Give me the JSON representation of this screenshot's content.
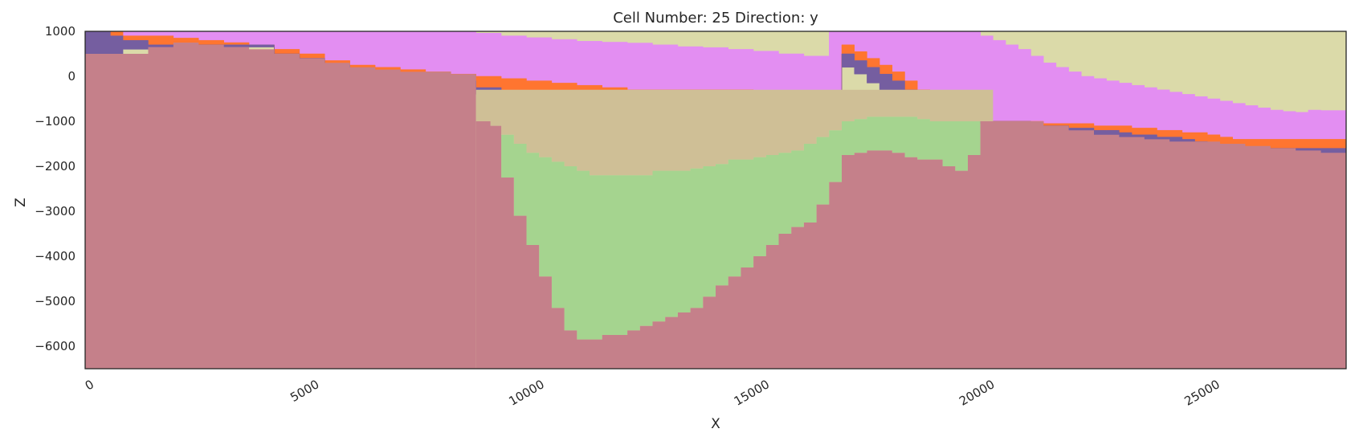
{
  "chart_data": {
    "type": "heatmap",
    "title": "Cell Number: 25 Direction: y",
    "xlabel": "X",
    "ylabel": "Z",
    "xlim": [
      0,
      28000
    ],
    "ylim": [
      -6500,
      1000
    ],
    "x_ticks": [
      0,
      5000,
      10000,
      15000,
      20000,
      25000
    ],
    "y_ticks": [
      1000,
      0,
      -1000,
      -2000,
      -3000,
      -4000,
      -5000,
      -6000
    ],
    "x_tick_labels": [
      "0",
      "5000",
      "10000",
      "15000",
      "20000",
      "25000"
    ],
    "y_tick_labels": [
      "1000",
      "0",
      "−1000",
      "−2000",
      "−3000",
      "−4000",
      "−5000",
      "−6000"
    ],
    "grid": false,
    "legend": "none",
    "colors": {
      "top_unit": "#dbdaa9",
      "pink_unit": "#e38ef2",
      "orange_unit": "#ff7530",
      "purple_unit": "#755ea0",
      "tan_unit": "#cfbf96",
      "green_unit": "#a5d48f",
      "basement": "#c5808a"
    },
    "layers": [
      {
        "unit": "top_unit",
        "x": [
          0,
          8700,
          17000,
          18800,
          19700,
          28000
        ],
        "bottom": [
          1000,
          1000,
          1000,
          1000,
          1000,
          1000
        ],
        "top": [
          1000,
          1000,
          1000,
          1000,
          1000,
          1000
        ]
      }
    ],
    "surfaces": {
      "x": [
        0,
        560,
        840,
        1400,
        1960,
        2520,
        3080,
        3640,
        4200,
        4760,
        5320,
        5880,
        6440,
        7000,
        7560,
        8120,
        8680,
        9240,
        9800,
        10360,
        10920,
        11480,
        12040,
        12600,
        13160,
        13720,
        14280,
        14840,
        15400,
        15960,
        16520,
        16800,
        17080,
        17360,
        17640,
        17920,
        18200,
        18480,
        18760,
        19040,
        19320,
        19600,
        19880,
        20160,
        20440,
        20720,
        21000,
        21280,
        21560,
        21840,
        22120,
        22400,
        22680,
        22960,
        23240,
        23520,
        23800,
        24080,
        24360,
        24640,
        24920,
        25200,
        25480,
        25760,
        26040,
        26320,
        26600,
        26880,
        27160,
        27440,
        27720,
        28000
      ],
      "top_unit_base": [
        1000,
        1000,
        1000,
        1000,
        1000,
        1000,
        1000,
        1000,
        1000,
        1000,
        1000,
        1000,
        1000,
        1000,
        1000,
        1000,
        960,
        900,
        860,
        820,
        780,
        760,
        740,
        700,
        660,
        640,
        600,
        560,
        500,
        450,
        1000,
        1000,
        1000,
        1000,
        1000,
        1000,
        1000,
        1000,
        1000,
        1000,
        1000,
        1000,
        900,
        800,
        700,
        600,
        450,
        300,
        200,
        100,
        0,
        -50,
        -100,
        -150,
        -200,
        -250,
        -300,
        -350,
        -400,
        -450,
        -500,
        -550,
        -600,
        -650,
        -700,
        -750,
        -780,
        -800,
        -750,
        -760,
        -760,
        -760
      ],
      "pink_unit_base": [
        1000,
        1000,
        900,
        900,
        850,
        800,
        750,
        700,
        600,
        500,
        350,
        250,
        200,
        150,
        100,
        50,
        0,
        -50,
        -100,
        -150,
        -200,
        -250,
        -300,
        -300,
        -300,
        -300,
        -300,
        -350,
        -400,
        -450,
        -500,
        700,
        550,
        400,
        250,
        100,
        -100,
        -300,
        -500,
        -700,
        -800,
        -900,
        -1000,
        -1000,
        -1000,
        -1000,
        -1000,
        -1050,
        -1050,
        -1050,
        -1050,
        -1100,
        -1100,
        -1100,
        -1150,
        -1150,
        -1200,
        -1200,
        -1250,
        -1250,
        -1300,
        -1350,
        -1400,
        -1400,
        -1400,
        -1400,
        -1400,
        -1400,
        -1400,
        -1400,
        -1400,
        -1400
      ],
      "orange_unit_base": [
        1000,
        900,
        800,
        700,
        700,
        700,
        700,
        700,
        500,
        400,
        250,
        150,
        50,
        0,
        -50,
        -100,
        -250,
        -350,
        -400,
        -400,
        -350,
        -400,
        -450,
        -500,
        -500,
        -500,
        -550,
        -550,
        -600,
        -650,
        -750,
        500,
        350,
        200,
        50,
        -100,
        -300,
        -500,
        -700,
        -850,
        -900,
        -950,
        -1000,
        -1000,
        -1000,
        -1000,
        -1100,
        -1100,
        -1100,
        -1150,
        -1150,
        -1200,
        -1200,
        -1250,
        -1300,
        -1300,
        -1350,
        -1350,
        -1400,
        -1450,
        -1500,
        -1550,
        -1600,
        -1600,
        -1600,
        -1600,
        -1600,
        -1600,
        -1600,
        -1600,
        -1600,
        -1600
      ],
      "purple_unit_base": [
        500,
        500,
        600,
        600,
        700,
        700,
        650,
        650,
        450,
        400,
        200,
        50,
        0,
        0,
        -100,
        -150,
        -400,
        -500,
        -550,
        -550,
        -550,
        -600,
        -650,
        -700,
        -700,
        -700,
        -700,
        -700,
        -800,
        -850,
        -900,
        200,
        50,
        -150,
        -300,
        -450,
        -600,
        -750,
        -900,
        -1000,
        -1000,
        -1000,
        -1050,
        -1050,
        -1050,
        -1100,
        -1150,
        -1200,
        -1200,
        -1250,
        -1300,
        -1350,
        -1350,
        -1400,
        -1450,
        -1500,
        -1550,
        -1550,
        -1600,
        -1650,
        -1700,
        -1700,
        -1700,
        -1700,
        -1700,
        -1700,
        -1750,
        -1750,
        -1750,
        -1750,
        -1750,
        -1750
      ]
    },
    "basin": {
      "x": [
        8680,
        9000,
        9240,
        9520,
        9800,
        10080,
        10360,
        10640,
        10920,
        11200,
        11480,
        11760,
        12040,
        12320,
        12600,
        12880,
        13160,
        13440,
        13720,
        14000,
        14280,
        14560,
        14840,
        15120,
        15400,
        15680,
        15960,
        16240,
        16520,
        16800,
        17080,
        17360,
        17640,
        17920,
        18200,
        18480,
        18760,
        19040,
        19320,
        19600,
        19880
      ],
      "basement_top": [
        -1000,
        -1100,
        -2250,
        -3100,
        -3750,
        -4450,
        -5150,
        -5650,
        -5850,
        -5850,
        -5750,
        -5750,
        -5650,
        -5550,
        -5450,
        -5350,
        -5250,
        -5150,
        -4900,
        -4650,
        -4450,
        -4250,
        -4000,
        -3750,
        -3500,
        -3350,
        -3250,
        -2850,
        -2350,
        -1750,
        -1700,
        -1650,
        -1650,
        -1700,
        -1800,
        -1850,
        -1850,
        -2000,
        -2100,
        -1750,
        -1000
      ],
      "tan_base": [
        -1000,
        -1100,
        -1300,
        -1500,
        -1700,
        -1800,
        -1900,
        -2000,
        -2100,
        -2200,
        -2200,
        -2200,
        -2200,
        -2200,
        -2100,
        -2100,
        -2100,
        -2050,
        -2000,
        -1950,
        -1850,
        -1850,
        -1800,
        -1750,
        -1700,
        -1650,
        -1500,
        -1350,
        -1200,
        -1000,
        -950,
        -900,
        -900,
        -900,
        -900,
        -950,
        -1000,
        -1000,
        -1000,
        -1000,
        -1000
      ]
    },
    "basement_profile": {
      "x": [
        0,
        560,
        1400,
        1960,
        2520,
        3080,
        3640,
        4200,
        4760,
        5320,
        5880,
        6440,
        7000,
        7560,
        8120,
        8680,
        19880,
        20160,
        20720,
        21280,
        21840,
        22400,
        22960,
        23520,
        24080,
        24640,
        25200,
        25760,
        26320,
        26880,
        27440,
        28000
      ],
      "z": [
        500,
        500,
        650,
        750,
        700,
        650,
        600,
        500,
        400,
        300,
        200,
        150,
        100,
        100,
        50,
        0,
        -1000,
        -1000,
        -1000,
        -1100,
        -1200,
        -1300,
        -1350,
        -1400,
        -1450,
        -1450,
        -1500,
        -1550,
        -1600,
        -1650,
        -1700,
        -1750
      ]
    }
  }
}
